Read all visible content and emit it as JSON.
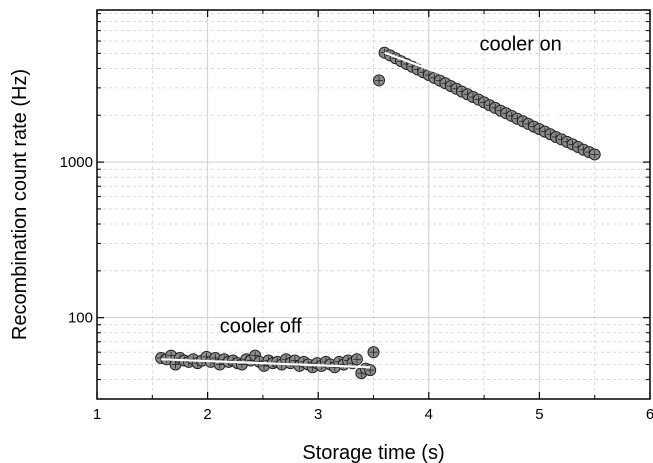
{
  "chart_data": {
    "type": "scatter",
    "xlabel": "Storage time (s)",
    "ylabel": "Recombination count rate (Hz)",
    "xlim": [
      1,
      6
    ],
    "ylim": [
      30,
      9500
    ],
    "yscale": "log",
    "grid": true,
    "x_ticks": [
      1,
      2,
      3,
      4,
      5,
      6
    ],
    "y_ticks": [
      100,
      1000
    ],
    "x_tick_labels": [
      "1",
      "2",
      "3",
      "4",
      "5",
      "6"
    ],
    "y_tick_labels": [
      "100",
      "1000"
    ],
    "annotations": [
      {
        "text": "cooler on",
        "x": 4.83,
        "y": 5200
      },
      {
        "text": "cooler off",
        "x": 2.48,
        "y": 80
      }
    ],
    "series": [
      {
        "segment": "cooler off",
        "x": [
          1.58,
          1.63,
          1.67,
          1.71,
          1.75,
          1.79,
          1.83,
          1.87,
          1.91,
          1.95,
          1.99,
          2.03,
          2.07,
          2.11,
          2.15,
          2.19,
          2.23,
          2.27,
          2.31,
          2.35,
          2.39,
          2.43,
          2.47,
          2.51,
          2.55,
          2.59,
          2.63,
          2.67,
          2.71,
          2.75,
          2.79,
          2.83,
          2.87,
          2.91,
          2.95,
          2.99,
          3.03,
          3.07,
          3.11,
          3.15,
          3.19,
          3.23,
          3.27,
          3.31,
          3.35,
          3.39,
          3.43,
          3.47,
          3.5
        ],
        "values": [
          55,
          54,
          57,
          50,
          55,
          53,
          52,
          54,
          51,
          53,
          56,
          52,
          55,
          50,
          54,
          52,
          53,
          51,
          50,
          54,
          53,
          57,
          52,
          49,
          53,
          51,
          52,
          50,
          54,
          51,
          53,
          49,
          52,
          50,
          48,
          51,
          49,
          52,
          50,
          48,
          52,
          50,
          53,
          51,
          54,
          44,
          47,
          46,
          60
        ],
        "fit": {
          "x": [
            1.58,
            3.47
          ],
          "y": [
            54,
            48
          ]
        }
      },
      {
        "segment": "cooler on",
        "x": [
          3.55,
          3.6,
          3.65,
          3.7,
          3.75,
          3.8,
          3.85,
          3.9,
          3.95,
          4.0,
          4.05,
          4.1,
          4.15,
          4.2,
          4.25,
          4.3,
          4.35,
          4.4,
          4.45,
          4.5,
          4.55,
          4.6,
          4.65,
          4.7,
          4.75,
          4.8,
          4.85,
          4.9,
          4.95,
          5.0,
          5.05,
          5.1,
          5.15,
          5.2,
          5.25,
          5.3,
          5.35,
          5.4,
          5.45,
          5.5
        ],
        "values": [
          3350,
          5050,
          4850,
          4650,
          4450,
          4270,
          4100,
          3940,
          3780,
          3630,
          3480,
          3340,
          3210,
          3080,
          2960,
          2840,
          2730,
          2620,
          2520,
          2420,
          2320,
          2230,
          2140,
          2060,
          1980,
          1900,
          1830,
          1760,
          1690,
          1630,
          1570,
          1510,
          1450,
          1400,
          1350,
          1300,
          1250,
          1200,
          1160,
          1120
        ],
        "fit": {
          "x": [
            3.6,
            5.5
          ],
          "y": [
            5050,
            1590
          ]
        }
      }
    ],
    "colors": {
      "marker_fill": "#8c8c8c",
      "marker_edge": "#222222",
      "fit_line": "#ffffff",
      "grid": "#cfcfcf"
    }
  }
}
